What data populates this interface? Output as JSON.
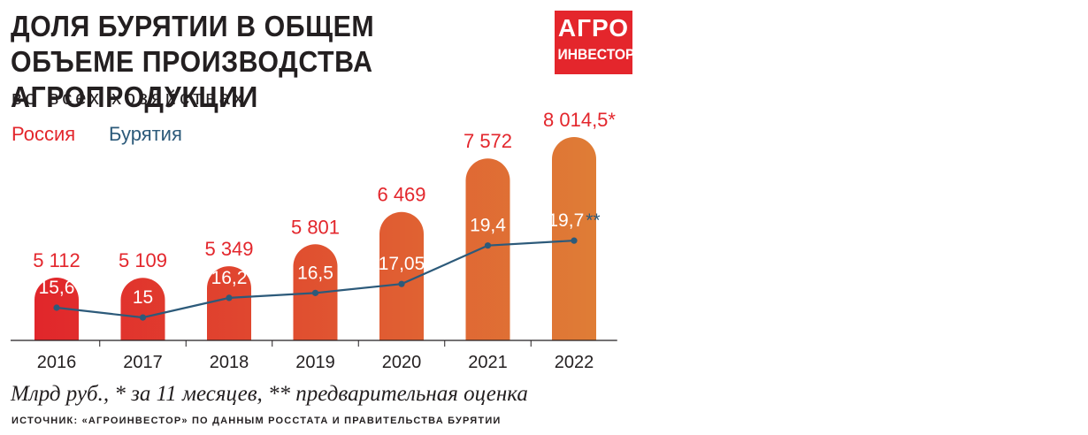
{
  "header": {
    "title": "ДОЛЯ БУРЯТИИ В ОБЩЕМ ОБЪЕМЕ ПРОИЗВОДСТВА АГРОПРОДУКЦИИ",
    "subtitle": "во всех хозяйствах"
  },
  "logo": {
    "line1": "АГРО",
    "line2": "ИНВЕСТОР",
    "color": "#e4262c"
  },
  "legend": {
    "russia": "Россия",
    "buryatia": "Бурятия"
  },
  "colors": {
    "russia_text": "#e3262c",
    "buryatia_line": "#2c5a7a",
    "bar_start": "#e1262b",
    "bar_end": "#df7d36"
  },
  "chart_data": {
    "type": "bar",
    "categories": [
      "2016",
      "2017",
      "2018",
      "2019",
      "2020",
      "2021",
      "2022"
    ],
    "series": [
      {
        "name": "Россия",
        "values": [
          5112,
          5109,
          5349,
          5801,
          6469,
          7572,
          8014.5
        ],
        "labels": [
          "5 112",
          "5 109",
          "5 349",
          "5 801",
          "6 469",
          "7 572",
          "8 014,5*"
        ]
      },
      {
        "name": "Бурятия",
        "type": "line",
        "values": [
          15.6,
          15,
          16.2,
          16.5,
          17.05,
          19.4,
          19.7
        ],
        "labels": [
          "15,6",
          "15",
          "16,2",
          "16,5",
          "17,05",
          "19,4",
          "19,7**"
        ]
      }
    ],
    "unit_note": "Млрд руб., * за 11 месяцев, ** предварительная оценка"
  },
  "footer": {
    "note": "Млрд руб., * за 11 месяцев, ** предварительная оценка",
    "source": "ИСТОЧНИК: «АГРОИНВЕСТОР» ПО ДАННЫМ РОССТАТА И ПРАВИТЕЛЬСТВА БУРЯТИИ"
  }
}
